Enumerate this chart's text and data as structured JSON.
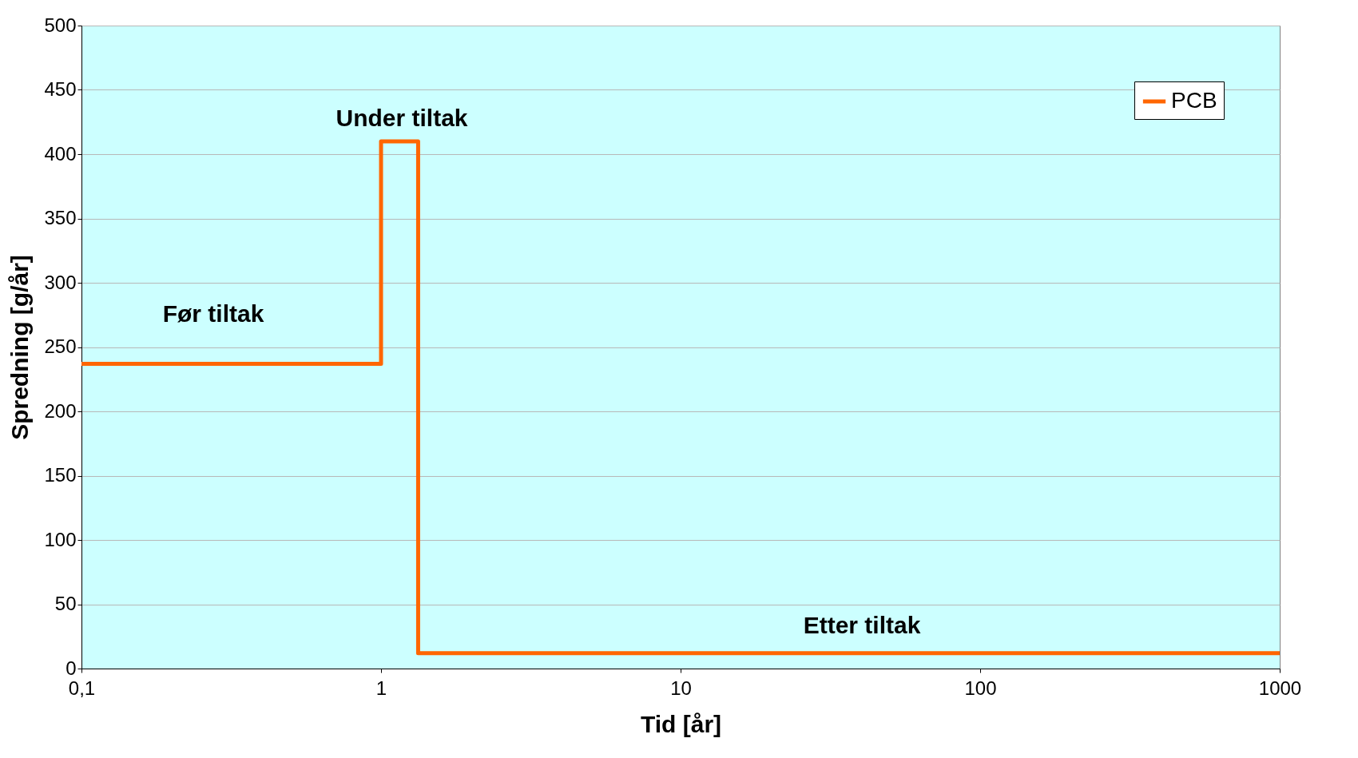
{
  "chart_data": {
    "type": "step",
    "xlabel": "Tid [år]",
    "ylabel": "Spredning [g/år]",
    "log": "x",
    "x": [
      0.1,
      1,
      1.33,
      1000
    ],
    "series": [
      {
        "name": "PCB",
        "color": "#ff6600",
        "values": [
          237,
          410,
          12,
          12
        ]
      }
    ],
    "xlim": [
      0.1,
      1000
    ],
    "xticks": [
      {
        "value": 0.1,
        "label": "0,1"
      },
      1,
      10,
      100,
      1000
    ],
    "ylim": [
      0,
      500
    ],
    "yticks": [
      0,
      50,
      100,
      150,
      200,
      250,
      300,
      350,
      400,
      450,
      500
    ],
    "grid": "y",
    "legend": "top right",
    "annotations": [
      "Før tiltak",
      "Under tiltak",
      "Etter tiltak"
    ]
  }
}
